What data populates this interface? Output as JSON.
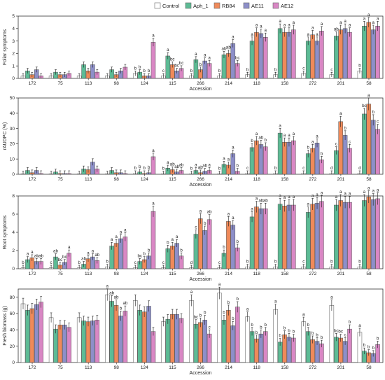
{
  "legend": [
    {
      "name": "Control",
      "color": "#ffffff"
    },
    {
      "name": "Aph_1",
      "color": "#5dbb95"
    },
    {
      "name": "RB84",
      "color": "#ef8a5a"
    },
    {
      "name": "AE11",
      "color": "#8d8fc9"
    },
    {
      "name": "AE12",
      "color": "#d987c4"
    }
  ],
  "chart_data": [
    {
      "type": "bar",
      "ylabel": "Foliar symptoms",
      "xlabel": "Accession",
      "ylim": [
        0,
        5
      ],
      "yticks": [
        0,
        1,
        2,
        3,
        4,
        5
      ],
      "categories": [
        "172",
        "75",
        "113",
        "98",
        "124",
        "115",
        "266",
        "214",
        "118",
        "158",
        "272",
        "201",
        "58"
      ],
      "series": [
        {
          "name": "Control",
          "values": [
            0.2,
            0.2,
            0.2,
            0.2,
            0.4,
            0.2,
            0.2,
            0.2,
            0.3,
            0.3,
            0.4,
            0.3,
            0.6
          ]
        },
        {
          "name": "Aph_1",
          "values": [
            0.6,
            0.5,
            1.1,
            0.7,
            0.5,
            1.8,
            1.5,
            1.9,
            3.0,
            4.0,
            3.0,
            3.4,
            4.2
          ]
        },
        {
          "name": "RB84",
          "values": [
            0.3,
            0.3,
            0.6,
            0.3,
            0.2,
            1.1,
            0.7,
            2.0,
            3.7,
            3.7,
            3.5,
            3.9,
            4.5
          ]
        },
        {
          "name": "AE11",
          "values": [
            0.7,
            0.3,
            1.1,
            0.6,
            0.2,
            0.6,
            1.4,
            2.8,
            3.6,
            3.7,
            3.0,
            4.0,
            3.9
          ]
        },
        {
          "name": "AE12",
          "values": [
            0.2,
            0.4,
            0.5,
            0.9,
            2.9,
            0.8,
            1.2,
            1.2,
            3.3,
            3.9,
            3.8,
            3.7,
            4.2
          ]
        }
      ],
      "labels": [
        [],
        [],
        [],
        [],
        [
          "b",
          "b",
          "b",
          "b",
          "a"
        ],
        [
          "c",
          "a",
          "bc",
          "bc",
          "bc"
        ],
        [
          "b",
          "a",
          "b",
          "a",
          "a"
        ],
        [
          "b",
          "ab",
          "ab",
          "a",
          "bc"
        ],
        [
          "b",
          "a",
          "a",
          "a",
          "a"
        ],
        [
          "b",
          "a",
          "a",
          "a",
          "a"
        ],
        [
          "c",
          "a",
          "a",
          "a",
          "a"
        ],
        [
          "c",
          "ab",
          "a",
          "a",
          "a"
        ],
        [
          "b",
          "a",
          "a",
          "a",
          "a"
        ]
      ]
    },
    {
      "type": "bar",
      "ylabel": "rAUDPC (%)",
      "xlabel": "Accession",
      "ylim": [
        0,
        50
      ],
      "yticks": [
        0,
        10,
        20,
        30,
        40,
        50
      ],
      "categories": [
        "172",
        "75",
        "113",
        "98",
        "124",
        "115",
        "266",
        "214",
        "118",
        "158",
        "272",
        "201",
        "58"
      ],
      "series": [
        {
          "name": "Control",
          "values": [
            0.3,
            0.3,
            0.3,
            0.3,
            0.5,
            0.3,
            0.3,
            0.3,
            0.5,
            0.5,
            0.5,
            0.5,
            0.5
          ]
        },
        {
          "name": "Aph_1",
          "values": [
            2.5,
            1.5,
            3.5,
            2.5,
            1.5,
            4.0,
            2.5,
            6.5,
            17.5,
            27.0,
            13.5,
            15.5,
            39.5
          ]
        },
        {
          "name": "RB84",
          "values": [
            1.0,
            0.5,
            3.0,
            1.0,
            0.5,
            3.0,
            1.0,
            6.0,
            22.0,
            21.0,
            17.0,
            34.5,
            46.0
          ]
        },
        {
          "name": "AE11",
          "values": [
            2.5,
            0.5,
            8.0,
            1.0,
            1.0,
            1.5,
            2.0,
            13.5,
            19.5,
            21.0,
            20.5,
            25.5,
            35.5
          ]
        },
        {
          "name": "AE12",
          "values": [
            0.5,
            0.5,
            3.5,
            0.5,
            11.5,
            2.5,
            2.5,
            2.0,
            18.0,
            22.0,
            9.5,
            17.0,
            29.5
          ]
        }
      ],
      "labels": [
        [],
        [],
        [],
        [],
        [
          "b",
          "b",
          "b",
          "b",
          "a"
        ],
        [
          "b",
          "a",
          "ab",
          "ab",
          "ab"
        ],
        [
          "b",
          "a",
          "ab",
          "ab",
          "a"
        ],
        [
          "b",
          "a",
          "a",
          "a",
          "b"
        ],
        [
          "c",
          "b",
          "a",
          "ab",
          "b"
        ],
        [
          "b",
          "a",
          "a",
          "a",
          "a"
        ],
        [
          "c",
          "b",
          "a",
          "a",
          "b"
        ],
        [
          "d",
          "c",
          "a",
          "b",
          "c"
        ],
        [
          "d",
          "bc",
          "a",
          "b",
          "c"
        ]
      ]
    },
    {
      "type": "bar",
      "ylabel": "Root symptoms",
      "xlabel": "Accession",
      "ylim": [
        0,
        8
      ],
      "yticks": [
        0,
        2,
        4,
        6,
        8
      ],
      "categories": [
        "172",
        "75",
        "113",
        "98",
        "124",
        "115",
        "266",
        "214",
        "118",
        "158",
        "272",
        "201",
        "58"
      ],
      "series": [
        {
          "name": "Control",
          "values": [
            0.1,
            0.1,
            0.1,
            0.2,
            0.1,
            0.1,
            0.1,
            0.1,
            0.2,
            0.2,
            0.2,
            0.2,
            0.2
          ]
        },
        {
          "name": "Aph_1",
          "values": [
            1.0,
            1.3,
            0.5,
            2.5,
            0.8,
            2.2,
            3.8,
            1.7,
            5.7,
            7.1,
            6.2,
            7.0,
            7.5
          ]
        },
        {
          "name": "RB84",
          "values": [
            1.2,
            0.4,
            1.1,
            2.8,
            1.0,
            2.5,
            5.5,
            5.2,
            6.8,
            6.9,
            7.1,
            7.5,
            7.9
          ]
        },
        {
          "name": "AE11",
          "values": [
            0.8,
            0.7,
            1.3,
            3.3,
            1.4,
            2.8,
            4.2,
            4.8,
            6.6,
            7.0,
            7.2,
            7.3,
            7.6
          ]
        },
        {
          "name": "AE12",
          "values": [
            0.8,
            1.7,
            0.9,
            3.5,
            6.3,
            1.4,
            5.4,
            2.3,
            6.6,
            7.0,
            7.4,
            7.3,
            7.7
          ]
        }
      ],
      "labels": [
        [
          "b",
          "a",
          "a",
          "ab",
          "ab"
        ],
        [
          "c",
          "ab",
          "bc",
          "bc",
          "a"
        ],
        [
          "b",
          "ab",
          "a",
          "a",
          "ab"
        ],
        [
          "b",
          "a",
          "a",
          "a",
          "a"
        ],
        [
          "c",
          "bc",
          "b",
          "b",
          "a"
        ],
        [
          "c",
          "b",
          "a",
          "a",
          "b"
        ],
        [
          "d",
          "c",
          "a",
          "b",
          "ab"
        ],
        [
          "c",
          "b",
          "a",
          "a",
          "b"
        ],
        [
          "b",
          "a",
          "a",
          "ab",
          "ab"
        ],
        [
          "b",
          "a",
          "a",
          "a",
          "a"
        ],
        [
          "c",
          "a",
          "a",
          "a",
          "a"
        ],
        [
          "b",
          "a",
          "a",
          "a",
          "a"
        ],
        [
          "b",
          "a",
          "a",
          "a",
          "a"
        ]
      ]
    },
    {
      "type": "bar",
      "ylabel": "Fresh biomass (g)",
      "xlabel": "Accession",
      "ylim": [
        0,
        90
      ],
      "yticks": [
        0,
        20,
        40,
        60,
        80
      ],
      "categories": [
        "172",
        "75",
        "113",
        "98",
        "124",
        "115",
        "266",
        "214",
        "118",
        "158",
        "272",
        "201",
        "58"
      ],
      "series": [
        {
          "name": "Control",
          "values": [
            72,
            55,
            55,
            83,
            76,
            50,
            76,
            85,
            56,
            65,
            50,
            70,
            37
          ]
        },
        {
          "name": "Aph_1",
          "values": [
            64,
            41,
            51,
            75,
            64,
            53,
            47,
            52,
            38,
            25,
            38,
            31,
            14
          ]
        },
        {
          "name": "RB84",
          "values": [
            66,
            46,
            50,
            70,
            62,
            59,
            49,
            64,
            29,
            34,
            28,
            30,
            12
          ]
        },
        {
          "name": "AE11",
          "values": [
            71,
            46,
            51,
            57,
            69,
            59,
            52,
            45,
            35,
            31,
            26,
            26,
            11
          ]
        },
        {
          "name": "AE12",
          "values": [
            74,
            43,
            52,
            63,
            38,
            54,
            35,
            68,
            38,
            30,
            23,
            41,
            22
          ]
        }
      ],
      "labels": [
        [],
        [],
        [],
        [
          "a",
          "ab",
          "ab",
          "b",
          "ab"
        ],
        [],
        [],
        [
          "a",
          "bc",
          "b",
          "b",
          "c"
        ],
        [
          "a",
          "b",
          "b",
          "b",
          "b"
        ],
        [
          "a",
          "b",
          "b",
          "b",
          "b"
        ],
        [
          "a",
          "b",
          "b",
          "b",
          "b"
        ],
        [
          "a",
          "b",
          "b",
          "b",
          "b"
        ],
        [
          "a",
          "bc",
          "bc",
          "c",
          "b"
        ],
        [
          "a",
          "b",
          "b",
          "b",
          "b"
        ]
      ]
    }
  ]
}
